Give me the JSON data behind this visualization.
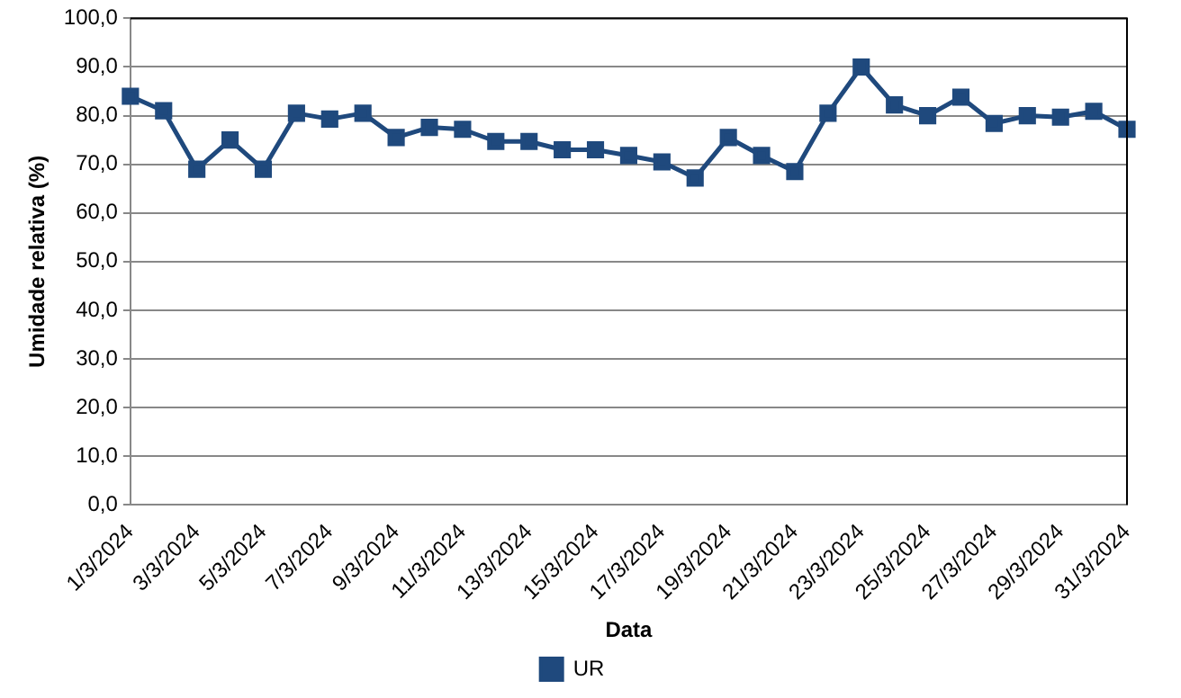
{
  "chart_data": {
    "type": "line",
    "xlabel": "Data",
    "ylabel": "Umidade relativa (%)",
    "categories": [
      "1/3/2024",
      null,
      "3/3/2024",
      null,
      "5/3/2024",
      null,
      "7/3/2024",
      null,
      "9/3/2024",
      null,
      "11/3/2024",
      null,
      "13/3/2024",
      null,
      "15/3/2024",
      null,
      "17/3/2024",
      null,
      "19/3/2024",
      null,
      "21/3/2024",
      null,
      "23/3/2024",
      null,
      "25/3/2024",
      null,
      "27/3/2024",
      null,
      "29/3/2024",
      null,
      "31/3/2024"
    ],
    "series": [
      {
        "name": "UR",
        "color": "#1f497d",
        "values": [
          84,
          81,
          69,
          75,
          69,
          80.5,
          79.3,
          80.5,
          75.5,
          77.6,
          77.2,
          74.7,
          74.7,
          73,
          73,
          71.8,
          70.5,
          67.2,
          75.5,
          71.8,
          68.5,
          80.5,
          90,
          82.2,
          80,
          83.8,
          78.4,
          80,
          79.7,
          80.9,
          77.2
        ]
      }
    ],
    "ylim": [
      0,
      100
    ],
    "yticks": [
      {
        "value": 0,
        "label": "0,0"
      },
      {
        "value": 10,
        "label": "10,0"
      },
      {
        "value": 20,
        "label": "20,0"
      },
      {
        "value": 30,
        "label": "30,0"
      },
      {
        "value": 40,
        "label": "40,0"
      },
      {
        "value": 50,
        "label": "50,0"
      },
      {
        "value": 60,
        "label": "60,0"
      },
      {
        "value": 70,
        "label": "70,0"
      },
      {
        "value": 80,
        "label": "80,0"
      },
      {
        "value": 90,
        "label": "90,0"
      },
      {
        "value": 100,
        "label": "100,0"
      }
    ],
    "grid": "y",
    "legend": "bottom",
    "marker": "square",
    "line_style": "solid"
  }
}
